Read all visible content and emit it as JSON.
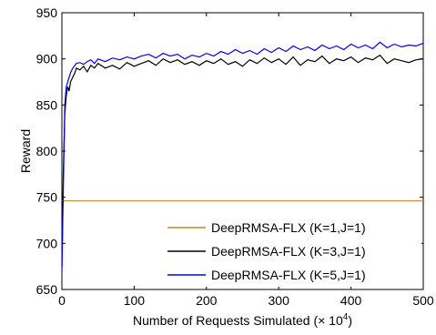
{
  "chart_data": {
    "type": "line",
    "xlabel": "Number of Requests Simulated (× 10",
    "xlabel_sup": "4",
    "xlabel_suffix": ")",
    "ylabel": "Reward",
    "xlim": [
      0,
      500
    ],
    "ylim": [
      650,
      950
    ],
    "xticks": [
      0,
      100,
      200,
      300,
      400,
      500
    ],
    "yticks": [
      650,
      700,
      750,
      800,
      850,
      900,
      950
    ],
    "grid": false,
    "legend_position": "bottom-right",
    "series": [
      {
        "name": "DeepRMSA-FLX (K=1,J=1)",
        "color": "#C08A1E",
        "x": [
          0,
          500
        ],
        "y": [
          746,
          746
        ]
      },
      {
        "name": "DeepRMSA-FLX (K=3,J=1)",
        "color": "#000000",
        "x": [
          0,
          2,
          4,
          6,
          8,
          10,
          12,
          15,
          18,
          20,
          25,
          30,
          35,
          40,
          45,
          50,
          60,
          70,
          80,
          90,
          100,
          110,
          120,
          130,
          140,
          150,
          160,
          170,
          180,
          190,
          200,
          210,
          220,
          230,
          240,
          250,
          260,
          270,
          280,
          290,
          300,
          310,
          320,
          330,
          340,
          350,
          360,
          370,
          380,
          390,
          400,
          410,
          420,
          430,
          440,
          450,
          460,
          470,
          480,
          490,
          500
        ],
        "y": [
          675,
          780,
          840,
          860,
          870,
          865,
          875,
          880,
          885,
          890,
          888,
          892,
          886,
          893,
          890,
          895,
          890,
          893,
          889,
          896,
          892,
          895,
          898,
          893,
          900,
          896,
          899,
          894,
          897,
          893,
          898,
          895,
          900,
          894,
          897,
          892,
          899,
          895,
          901,
          896,
          900,
          894,
          902,
          893,
          899,
          897,
          903,
          895,
          900,
          898,
          902,
          896,
          901,
          899,
          904,
          895,
          900,
          898,
          896,
          899,
          900
        ]
      },
      {
        "name": "DeepRMSA-FLX (K=5,J=1)",
        "color": "#0000FF",
        "x": [
          0,
          2,
          4,
          6,
          8,
          10,
          12,
          15,
          18,
          20,
          25,
          30,
          35,
          40,
          45,
          50,
          60,
          70,
          80,
          90,
          100,
          110,
          120,
          130,
          140,
          150,
          160,
          170,
          180,
          190,
          200,
          210,
          220,
          230,
          240,
          250,
          260,
          270,
          280,
          290,
          300,
          310,
          320,
          330,
          340,
          350,
          360,
          370,
          380,
          390,
          400,
          410,
          420,
          430,
          440,
          450,
          460,
          470,
          480,
          490,
          500
        ],
        "y": [
          670,
          760,
          850,
          870,
          875,
          880,
          885,
          890,
          893,
          895,
          896,
          894,
          897,
          899,
          895,
          900,
          897,
          901,
          899,
          902,
          900,
          903,
          905,
          901,
          906,
          903,
          905,
          900,
          904,
          902,
          906,
          903,
          908,
          905,
          910,
          906,
          909,
          905,
          911,
          907,
          912,
          908,
          914,
          910,
          913,
          909,
          915,
          911,
          914,
          910,
          916,
          912,
          915,
          911,
          918,
          912,
          916,
          913,
          915,
          914,
          917
        ]
      }
    ]
  }
}
